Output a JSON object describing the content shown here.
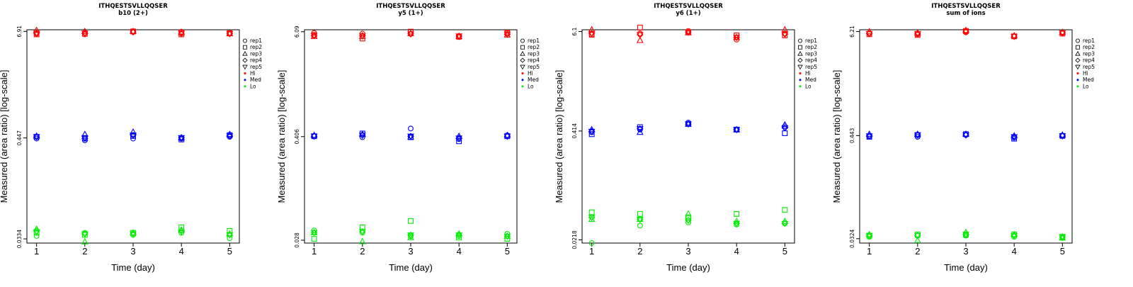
{
  "chart_data": [
    {
      "type": "scatter",
      "title": "ITHQESTSVLLQQSER",
      "subtitle": "b10 (2+)",
      "xlabel": "Time (day)",
      "ylabel": "Measured (area ratio) [log-scale]",
      "x": [
        1,
        2,
        3,
        4,
        5
      ],
      "yscale": "log",
      "ylim": [
        0.03,
        7.2
      ],
      "ytick_values": [
        0.0334,
        0.447,
        6.91
      ],
      "ytick_labels": [
        "0.0334",
        "0.447",
        "6.91"
      ],
      "series": [
        {
          "name": "rep1",
          "level": "Hi",
          "values": [
            6.5,
            6.4,
            6.8,
            6.85,
            6.6
          ]
        },
        {
          "name": "rep2",
          "level": "Hi",
          "values": [
            6.4,
            6.5,
            6.9,
            6.4,
            6.6
          ]
        },
        {
          "name": "rep3",
          "level": "Hi",
          "values": [
            7.1,
            6.9,
            6.9,
            6.7,
            6.5
          ]
        },
        {
          "name": "rep4",
          "level": "Hi",
          "values": [
            6.6,
            6.6,
            6.8,
            6.5,
            6.5
          ]
        },
        {
          "name": "rep5",
          "level": "Hi",
          "values": [
            6.6,
            6.6,
            6.8,
            6.6,
            6.5
          ]
        },
        {
          "name": "rep1",
          "level": "Med",
          "values": [
            0.44,
            0.42,
            0.44,
            0.44,
            0.46
          ]
        },
        {
          "name": "rep2",
          "level": "Med",
          "values": [
            0.46,
            0.44,
            0.47,
            0.43,
            0.48
          ]
        },
        {
          "name": "rep3",
          "level": "Med",
          "values": [
            0.47,
            0.49,
            0.52,
            0.45,
            0.49
          ]
        },
        {
          "name": "rep4",
          "level": "Med",
          "values": [
            0.46,
            0.44,
            0.48,
            0.45,
            0.47
          ]
        },
        {
          "name": "rep5",
          "level": "Med",
          "values": [
            0.46,
            0.45,
            0.48,
            0.45,
            0.47
          ]
        },
        {
          "name": "rep1",
          "level": "Lo",
          "values": [
            0.036,
            0.039,
            0.037,
            0.039,
            0.034
          ]
        },
        {
          "name": "rep2",
          "level": "Lo",
          "values": [
            0.039,
            0.037,
            0.039,
            0.045,
            0.041
          ]
        },
        {
          "name": "rep3",
          "level": "Lo",
          "values": [
            0.043,
            0.031,
            0.039,
            0.042,
            0.038
          ]
        },
        {
          "name": "rep4",
          "level": "Lo",
          "values": [
            0.041,
            0.038,
            0.038,
            0.041,
            0.037
          ]
        },
        {
          "name": "rep5",
          "level": "Lo",
          "values": [
            0.04,
            0.038,
            0.038,
            0.04,
            0.037
          ]
        }
      ]
    },
    {
      "type": "scatter",
      "title": "ITHQESTSVLLQQSER",
      "subtitle": "y5 (1+)",
      "xlabel": "Time (day)",
      "ylabel": "Measured (area ratio) [log-scale]",
      "x": [
        1,
        2,
        3,
        4,
        5
      ],
      "yscale": "log",
      "ylim": [
        0.026,
        6.4
      ],
      "ytick_values": [
        0.028,
        0.406,
        6.09
      ],
      "ytick_labels": [
        "0.028",
        "0.406",
        "6.09"
      ],
      "series": [
        {
          "name": "rep1",
          "level": "Hi",
          "values": [
            5.9,
            5.8,
            5.75,
            5.3,
            5.9
          ]
        },
        {
          "name": "rep2",
          "level": "Hi",
          "values": [
            5.6,
            5.1,
            6.1,
            5.35,
            5.95
          ]
        },
        {
          "name": "rep3",
          "level": "Hi",
          "values": [
            5.4,
            5.4,
            5.8,
            5.4,
            5.6
          ]
        },
        {
          "name": "rep4",
          "level": "Hi",
          "values": [
            5.5,
            5.5,
            5.8,
            5.45,
            5.7
          ]
        },
        {
          "name": "rep5",
          "level": "Hi",
          "values": [
            5.5,
            5.45,
            5.75,
            5.45,
            5.7
          ]
        },
        {
          "name": "rep1",
          "level": "Med",
          "values": [
            0.41,
            0.4,
            0.5,
            0.38,
            0.42
          ]
        },
        {
          "name": "rep2",
          "level": "Med",
          "values": [
            0.41,
            0.44,
            0.4,
            0.36,
            0.41
          ]
        },
        {
          "name": "rep3",
          "level": "Med",
          "values": [
            0.42,
            0.43,
            0.4,
            0.41,
            0.42
          ]
        },
        {
          "name": "rep4",
          "level": "Med",
          "values": [
            0.41,
            0.42,
            0.41,
            0.39,
            0.41
          ]
        },
        {
          "name": "rep5",
          "level": "Med",
          "values": [
            0.41,
            0.42,
            0.41,
            0.39,
            0.41
          ]
        },
        {
          "name": "rep1",
          "level": "Lo",
          "values": [
            0.036,
            0.034,
            0.031,
            0.031,
            0.033
          ]
        },
        {
          "name": "rep2",
          "level": "Lo",
          "values": [
            0.029,
            0.039,
            0.046,
            0.03,
            0.029
          ]
        },
        {
          "name": "rep3",
          "level": "Lo",
          "values": [
            0.034,
            0.027,
            0.03,
            0.033,
            0.031
          ]
        },
        {
          "name": "rep4",
          "level": "Lo",
          "values": [
            0.034,
            0.035,
            0.032,
            0.032,
            0.031
          ]
        },
        {
          "name": "rep5",
          "level": "Lo",
          "values": [
            0.034,
            0.035,
            0.032,
            0.032,
            0.031
          ]
        }
      ]
    },
    {
      "type": "scatter",
      "title": "ITHQESTSVLLQQSER",
      "subtitle": "y6 (1+)",
      "xlabel": "Time (day)",
      "ylabel": "Measured (area ratio) [log-scale]",
      "x": [
        1,
        2,
        3,
        4,
        5
      ],
      "yscale": "log",
      "ylim": [
        0.02,
        6.4
      ],
      "ytick_values": [
        0.0218,
        0.414,
        6.1
      ],
      "ytick_labels": [
        "0.0218",
        "0.414",
        "6.1"
      ],
      "series": [
        {
          "name": "rep1",
          "level": "Hi",
          "values": [
            5.6,
            5.8,
            6.2,
            4.9,
            5.8
          ]
        },
        {
          "name": "rep2",
          "level": "Hi",
          "values": [
            5.6,
            6.8,
            6.0,
            5.5,
            5.5
          ]
        },
        {
          "name": "rep3",
          "level": "Hi",
          "values": [
            6.4,
            4.8,
            5.9,
            5.2,
            6.4
          ]
        },
        {
          "name": "rep4",
          "level": "Hi",
          "values": [
            5.8,
            5.6,
            6.0,
            5.2,
            5.7
          ]
        },
        {
          "name": "rep5",
          "level": "Hi",
          "values": [
            5.8,
            5.6,
            6.0,
            5.2,
            5.7
          ]
        },
        {
          "name": "rep1",
          "level": "Med",
          "values": [
            0.4,
            0.43,
            0.52,
            0.43,
            0.47
          ]
        },
        {
          "name": "rep2",
          "level": "Med",
          "values": [
            0.38,
            0.46,
            0.5,
            0.43,
            0.39
          ]
        },
        {
          "name": "rep3",
          "level": "Med",
          "values": [
            0.43,
            0.4,
            0.5,
            0.43,
            0.49
          ]
        },
        {
          "name": "rep4",
          "level": "Med",
          "values": [
            0.41,
            0.44,
            0.5,
            0.43,
            0.45
          ]
        },
        {
          "name": "rep5",
          "level": "Med",
          "values": [
            0.41,
            0.44,
            0.5,
            0.43,
            0.45
          ]
        },
        {
          "name": "rep1",
          "level": "Lo",
          "values": [
            0.02,
            0.032,
            0.035,
            0.033,
            0.034
          ]
        },
        {
          "name": "rep2",
          "level": "Lo",
          "values": [
            0.046,
            0.044,
            0.04,
            0.044,
            0.049
          ]
        },
        {
          "name": "rep3",
          "level": "Lo",
          "values": [
            0.038,
            0.038,
            0.044,
            0.036,
            0.036
          ]
        },
        {
          "name": "rep4",
          "level": "Lo",
          "values": [
            0.04,
            0.038,
            0.037,
            0.034,
            0.034
          ]
        },
        {
          "name": "rep5",
          "level": "Lo",
          "values": [
            0.04,
            0.038,
            0.037,
            0.034,
            0.034
          ]
        }
      ]
    },
    {
      "type": "scatter",
      "title": "ITHQESTSVLLQQSER",
      "subtitle": "sum of ions",
      "xlabel": "Time (day)",
      "ylabel": "Measured (area ratio) [log-scale]",
      "x": [
        1,
        2,
        3,
        4,
        5
      ],
      "yscale": "log",
      "ylim": [
        0.029,
        6.5
      ],
      "ytick_values": [
        0.0324,
        0.443,
        6.21
      ],
      "ytick_labels": [
        "0.0324",
        "0.443",
        "6.21"
      ],
      "series": [
        {
          "name": "rep1",
          "level": "Hi",
          "values": [
            5.9,
            5.8,
            6.1,
            5.5,
            6.0
          ]
        },
        {
          "name": "rep2",
          "level": "Hi",
          "values": [
            5.8,
            5.7,
            6.3,
            5.5,
            5.9
          ]
        },
        {
          "name": "rep3",
          "level": "Hi",
          "values": [
            6.2,
            6.0,
            6.4,
            5.6,
            6.1
          ]
        },
        {
          "name": "rep4",
          "level": "Hi",
          "values": [
            5.9,
            5.9,
            6.2,
            5.5,
            6.0
          ]
        },
        {
          "name": "rep5",
          "level": "Hi",
          "values": [
            5.9,
            5.9,
            6.2,
            5.5,
            6.0
          ]
        },
        {
          "name": "rep1",
          "level": "Med",
          "values": [
            0.43,
            0.43,
            0.45,
            0.42,
            0.44
          ]
        },
        {
          "name": "rep2",
          "level": "Med",
          "values": [
            0.43,
            0.45,
            0.46,
            0.41,
            0.44
          ]
        },
        {
          "name": "rep3",
          "level": "Med",
          "values": [
            0.46,
            0.46,
            0.46,
            0.44,
            0.45
          ]
        },
        {
          "name": "rep4",
          "level": "Med",
          "values": [
            0.44,
            0.45,
            0.45,
            0.43,
            0.44
          ]
        },
        {
          "name": "rep5",
          "level": "Med",
          "values": [
            0.44,
            0.45,
            0.45,
            0.43,
            0.44
          ]
        },
        {
          "name": "rep1",
          "level": "Lo",
          "values": [
            0.034,
            0.035,
            0.035,
            0.034,
            0.033
          ]
        },
        {
          "name": "rep2",
          "level": "Lo",
          "values": [
            0.035,
            0.036,
            0.036,
            0.036,
            0.034
          ]
        },
        {
          "name": "rep3",
          "level": "Lo",
          "values": [
            0.036,
            0.031,
            0.038,
            0.036,
            0.033
          ]
        },
        {
          "name": "rep4",
          "level": "Lo",
          "values": [
            0.035,
            0.035,
            0.036,
            0.035,
            0.034
          ]
        },
        {
          "name": "rep5",
          "level": "Lo",
          "values": [
            0.035,
            0.035,
            0.036,
            0.035,
            0.034
          ]
        }
      ]
    }
  ],
  "legend": {
    "entries": [
      {
        "label": "rep1",
        "symbol": "circle-icon",
        "color": "#000000"
      },
      {
        "label": "rep2",
        "symbol": "square-icon",
        "color": "#000000"
      },
      {
        "label": "rep3",
        "symbol": "triangle-up-icon",
        "color": "#000000"
      },
      {
        "label": "rep4",
        "symbol": "diamond-icon",
        "color": "#000000"
      },
      {
        "label": "rep5",
        "symbol": "triangle-down-icon",
        "color": "#000000"
      },
      {
        "label": "Hi",
        "symbol": "dot-icon",
        "color": "#ff0000"
      },
      {
        "label": "Med",
        "symbol": "dot-icon",
        "color": "#0000ff"
      },
      {
        "label": "Lo",
        "symbol": "dot-icon",
        "color": "#00ee00"
      }
    ]
  },
  "colors": {
    "Hi": "#ff0000",
    "Med": "#0000ff",
    "Lo": "#00ee00"
  }
}
